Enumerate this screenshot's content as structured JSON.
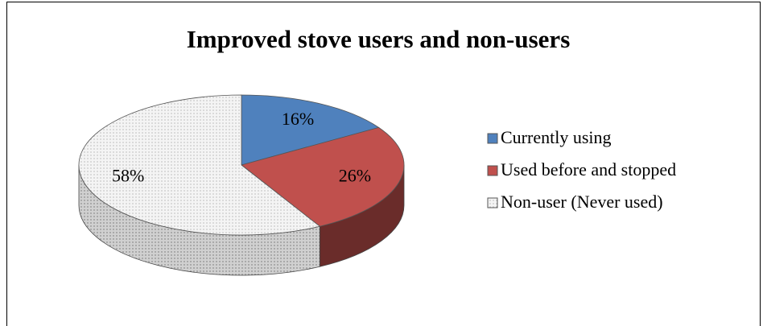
{
  "chart_data": {
    "type": "pie3d",
    "title": "Improved stove users and non-users",
    "categories": [
      "Currently using",
      "Used before and stopped",
      "Non-user (Never used)"
    ],
    "values": [
      16,
      26,
      58
    ],
    "value_labels": [
      "16%",
      "26%",
      "58%"
    ],
    "colors": [
      "#4f81bd",
      "#c0504d",
      "#f2f2f2"
    ],
    "legend": "right"
  }
}
